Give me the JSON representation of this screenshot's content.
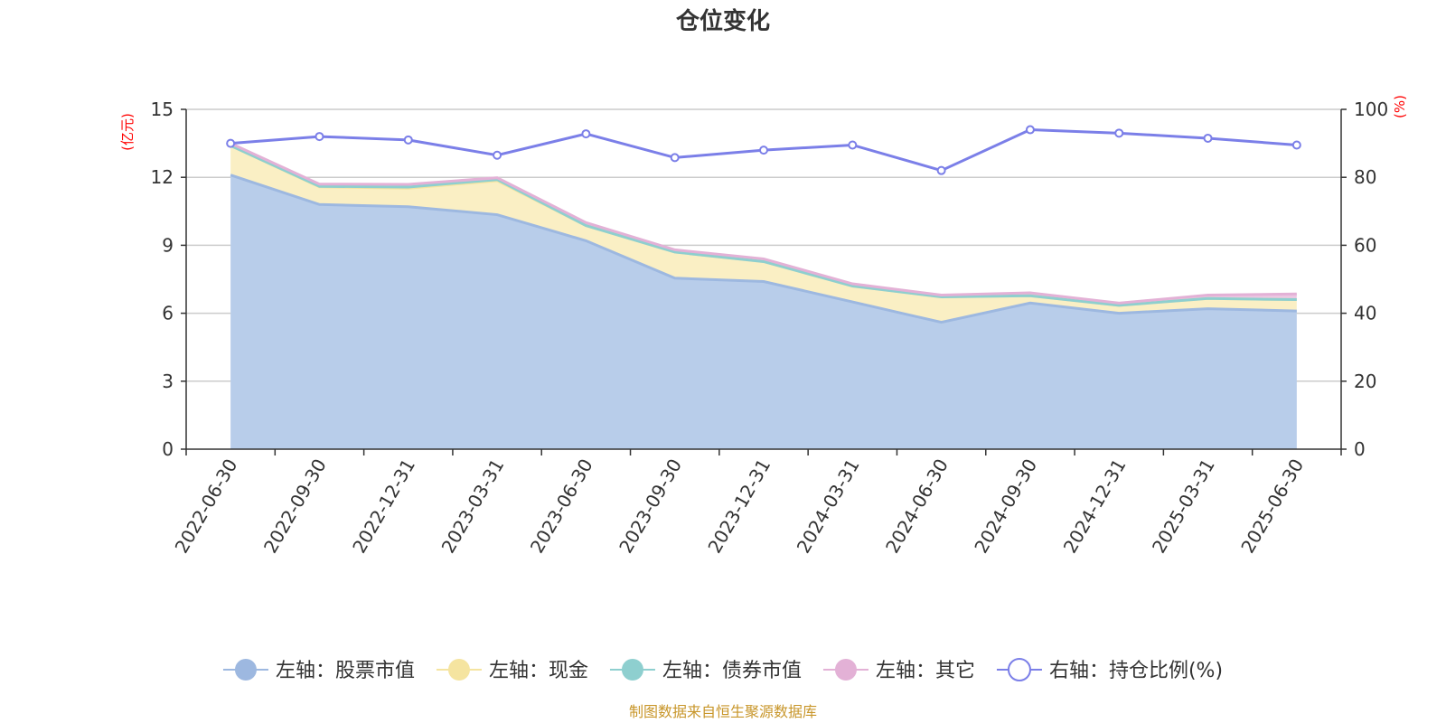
{
  "chart_data": {
    "type": "area",
    "title": "仓位变化",
    "x": [
      "2022-06-30",
      "2022-09-30",
      "2022-12-31",
      "2023-03-31",
      "2023-06-30",
      "2023-09-30",
      "2023-12-31",
      "2024-03-31",
      "2024-06-30",
      "2024-09-30",
      "2024-12-31",
      "2025-03-31",
      "2025-06-30"
    ],
    "left_axis": {
      "unit": "(亿元)",
      "ylim": [
        0,
        15
      ],
      "ticks": [
        "0",
        "3",
        "6",
        "9",
        "12",
        "15"
      ]
    },
    "right_axis": {
      "unit": "(%)",
      "ylim": [
        0,
        100
      ],
      "ticks": [
        "0",
        "20",
        "40",
        "60",
        "80",
        "100"
      ]
    },
    "stacked": true,
    "series": [
      {
        "name": "左轴：股票市值",
        "axis": "left",
        "color": "#9db8e0",
        "fill": "#b8cdea",
        "values": [
          12.1,
          10.8,
          10.7,
          10.35,
          9.2,
          7.55,
          7.4,
          6.5,
          5.6,
          6.45,
          6.0,
          6.2,
          6.1
        ]
      },
      {
        "name": "左轴：现金",
        "axis": "left",
        "color": "#f5e4a0",
        "fill": "#faefc4",
        "values": [
          1.3,
          0.78,
          0.82,
          1.5,
          0.67,
          1.15,
          0.88,
          0.7,
          1.12,
          0.32,
          0.35,
          0.45,
          0.5
        ]
      },
      {
        "name": "左轴：债券市值",
        "axis": "left",
        "color": "#8ecfcf",
        "fill": "#b5e0df",
        "values": [
          0,
          0.02,
          0.05,
          0.05,
          0,
          0,
          0,
          0,
          0,
          0,
          0,
          0,
          0
        ]
      },
      {
        "name": "左轴：其它",
        "axis": "left",
        "color": "#e3b1d6",
        "fill": "#ecc7e3",
        "values": [
          0.1,
          0.1,
          0.12,
          0.08,
          0.13,
          0.1,
          0.12,
          0.1,
          0.08,
          0.13,
          0.1,
          0.15,
          0.25
        ]
      },
      {
        "name": "右轴：持仓比例(%)",
        "axis": "right",
        "type": "line",
        "color": "#7b7fe8",
        "values": [
          90,
          92,
          91,
          86.5,
          92.8,
          85.8,
          88,
          89.5,
          82,
          94,
          93,
          91.5,
          89.5
        ]
      }
    ],
    "grid": true,
    "legend_position": "bottom"
  },
  "source_note": "制图数据来自恒生聚源数据库"
}
